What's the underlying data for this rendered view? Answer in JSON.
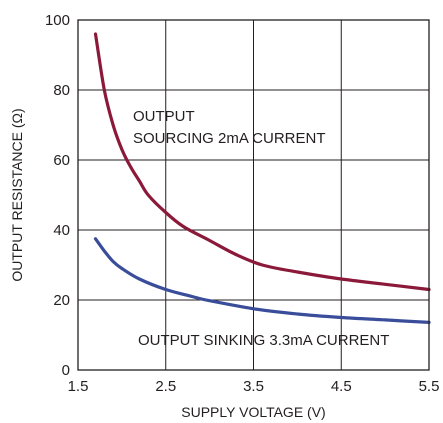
{
  "chart_data": {
    "type": "line",
    "title": "",
    "xlabel": "SUPPLY VOLTAGE (V)",
    "ylabel": "OUTPUT RESISTANCE (Ω)",
    "xlim": [
      1.5,
      5.5
    ],
    "ylim": [
      0,
      100
    ],
    "x_ticks": [
      "1.5",
      "2.5",
      "3.5",
      "4.5",
      "5.5"
    ],
    "y_ticks": [
      "0",
      "20",
      "40",
      "60",
      "80",
      "100"
    ],
    "grid": true,
    "series": [
      {
        "label_lines": [
          "OUTPUT",
          "SOURCING 2mA CURRENT"
        ],
        "color": "#8b1a3a",
        "x": [
          1.7,
          1.8,
          1.9,
          2.0,
          2.1,
          2.2,
          2.3,
          2.5,
          2.7,
          3.0,
          3.3,
          3.6,
          4.0,
          4.5,
          5.0,
          5.5
        ],
        "y": [
          96,
          80,
          70,
          63,
          58,
          54,
          50,
          45,
          41,
          37,
          33,
          30,
          28,
          26,
          24.5,
          23
        ]
      },
      {
        "label_lines": [
          "OUTPUT SINKING 3.3mA CURRENT"
        ],
        "color": "#3a4d9a",
        "x": [
          1.7,
          1.8,
          1.9,
          2.0,
          2.2,
          2.5,
          2.8,
          3.0,
          3.5,
          4.0,
          4.5,
          5.0,
          5.5
        ],
        "y": [
          37.5,
          34,
          31,
          29,
          26,
          23,
          21,
          19.8,
          17.5,
          16,
          15,
          14.3,
          13.6
        ]
      }
    ]
  }
}
